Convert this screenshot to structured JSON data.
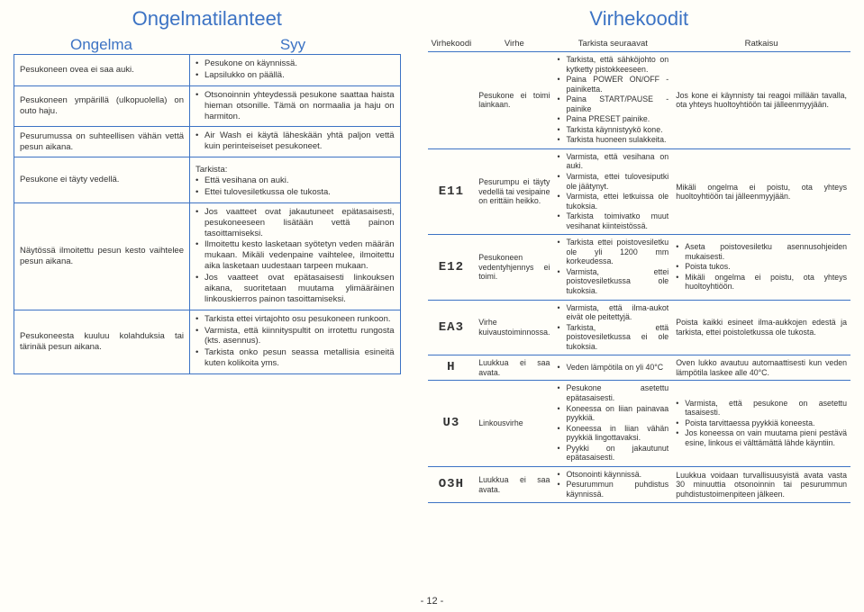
{
  "left": {
    "title": "Ongelmatilanteet",
    "sub1": "Ongelma",
    "sub2": "Syy",
    "rows": [
      {
        "p": "Pesukoneen ovea ei saa auki.",
        "c": [
          "Pesukone on käynnissä.",
          "Lapsilukko on päällä."
        ]
      },
      {
        "p": "Pesukoneen ympärillä (ulkopuolella) on outo haju.",
        "c": [
          "Otsonoinnin yhteydessä pesukone saattaa haista hieman otsonille. Tämä on normaalia ja haju on harmiton."
        ]
      },
      {
        "p": "Pesurumussa on suhteellisen vähän vettä pesun aikana.",
        "c": [
          "Air Wash ei käytä läheskään yhtä paljon vettä kuin perinteiseiset pesukoneet."
        ]
      },
      {
        "p": "Pesukone ei täyty vedellä.",
        "clabel": "Tarkista:",
        "c": [
          "Että vesihana on auki.",
          "Ettei tulovesiletkussa ole tukosta."
        ]
      },
      {
        "p": "Näytössä ilmoitettu pesun kesto vaihtelee pesun aikana.",
        "c": [
          "Jos vaatteet ovat jakautuneet epätasaisesti, pesukoneeseen lisätään vettä painon tasoittamiseksi.",
          "Ilmoitettu kesto lasketaan syötetyn veden määrän mukaan. Mikäli vedenpaine vaihtelee, ilmoitettu aika lasketaan uudestaan tarpeen mukaan.",
          "Jos vaatteet ovat epätasaisesti linkouksen aikana, suoritetaan muutama ylimääräinen linkouskierros painon tasoittamiseksi."
        ]
      },
      {
        "p": "Pesukoneesta kuuluu kolahduksia tai tärinää pesun aikana.",
        "c": [
          "Tarkista ettei virtajohto osu pesukoneen runkoon.",
          "Varmista, että kiinnityspultit on irrotettu rungosta (kts. asennus).",
          "Tarkista onko pesun seassa metallisia esineitä kuten kolikoita yms."
        ]
      }
    ]
  },
  "right": {
    "title": "Virhekoodit",
    "head": [
      "Virhekoodi",
      "Virhe",
      "Tarkista seuraavat",
      "Ratkaisu"
    ],
    "rows": [
      {
        "code": "",
        "err": "Pesukone ei toimi lainkaan.",
        "chk": [
          "Tarkista, että sähköjohto on kytketty pistokkeeseen.",
          "Paina POWER ON/OFF -painiketta.",
          "Paina START/PAUSE -painike",
          "Paina PRESET painike.",
          "Tarkista käynnistyykö kone.",
          "Tarkista huoneen sulakkeita."
        ],
        "sol": "Jos kone ei käynnisty tai reagoi millään tavalla, ota yhteys huoltoyhtiöön tai jälleenmyyjään."
      },
      {
        "code": "E11",
        "err": "Pesurumpu ei täyty vedellä tai vesipaine on erittäin heikko.",
        "chk": [
          "Varmista, että vesihana on auki.",
          "Varmista, ettei tulovesiputki ole jäätynyt.",
          "Varmista, ettei letkuissa ole tukoksia.",
          "Tarkista toimivatko muut vesihanat kiinteistössä."
        ],
        "sol": "Mikäli ongelma ei poistu, ota yhteys huoltoyhtiöön tai jälleenmyyjään."
      },
      {
        "code": "E12",
        "err": "Pesukoneen vedentyhjennys ei toimi.",
        "chk": [
          "Tarkista ettei poistovesiletku ole yli 1200 mm korkeudessa.",
          "Varmista, ettei poistovesiletkussa ole tukoksia."
        ],
        "sol_list": [
          "Aseta poistovesiletku asennusohjeiden mukaisesti.",
          "Poista tukos.",
          "Mikäli ongelma ei poistu, ota yhteys huoltoyhtiöön."
        ]
      },
      {
        "code": "EA3",
        "err": "Virhe kuivaustoiminnossa.",
        "chk": [
          "Varmista, että ilma-aukot eivät ole peitettyjä.",
          "Tarkista, että poistovesiletkussa ei ole tukoksia."
        ],
        "sol": "Poista kaikki esineet ilma-aukkojen edestä ja tarkista, ettei poistoletkussa ole tukosta."
      },
      {
        "code": "H",
        "err": "Luukkua ei saa avata.",
        "chk": [
          "Veden lämpötila on yli 40°C"
        ],
        "sol": "Oven lukko avautuu automaattisesti kun veden lämpötila laskee alle 40°C."
      },
      {
        "code": "U3",
        "err": "Linkousvirhe",
        "chk": [
          "Pesukone asetettu epätasaisesti.",
          "Koneessa on liian painavaa pyykkiä.",
          "Koneessa in liian vähän pyykkiä lingottavaksi.",
          "Pyykki on jakautunut epätasaisesti."
        ],
        "sol_list": [
          "Varmista, että pesukone on asetettu tasaisesti.",
          "Poista tarvittaessa pyykkiä koneesta.",
          "Jos koneessa on vain muutama pieni pestävä esine, linkous ei välttämättä lähde käyntiin."
        ]
      },
      {
        "code": "O3H",
        "err": "Luukkua ei saa avata.",
        "chk": [
          "Otsonointi käynnissä.",
          "Pesurummun puhdistus käynnissä."
        ],
        "sol": "Luukkua voidaan turvallisuusyistä avata vasta 30 minuuttia otsonoinnin tai pesurummun puhdistustoimenpiteen jälkeen."
      }
    ]
  },
  "pagenum": "- 12 -"
}
